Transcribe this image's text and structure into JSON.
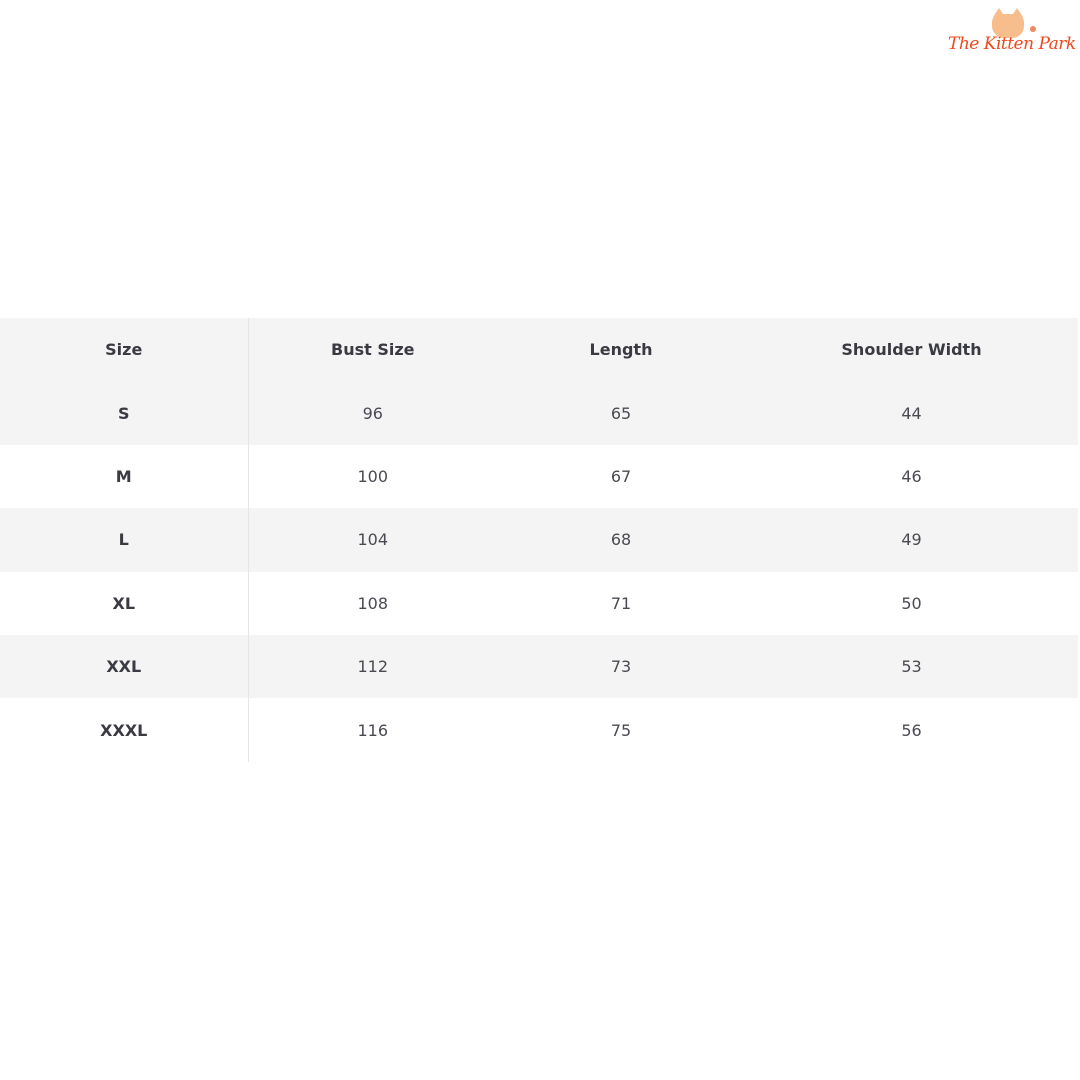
{
  "brand": {
    "name": "The Kitten Park",
    "accent_color": "#ee4a1d"
  },
  "table": {
    "headers": [
      "Size",
      "Bust Size",
      "Length",
      "Shoulder Width"
    ],
    "rows": [
      [
        "S",
        "96",
        "65",
        "44"
      ],
      [
        "M",
        "100",
        "67",
        "46"
      ],
      [
        "L",
        "104",
        "68",
        "49"
      ],
      [
        "XL",
        "108",
        "71",
        "50"
      ],
      [
        "XXL",
        "112",
        "73",
        "53"
      ],
      [
        "XXXL",
        "116",
        "75",
        "56"
      ]
    ]
  }
}
